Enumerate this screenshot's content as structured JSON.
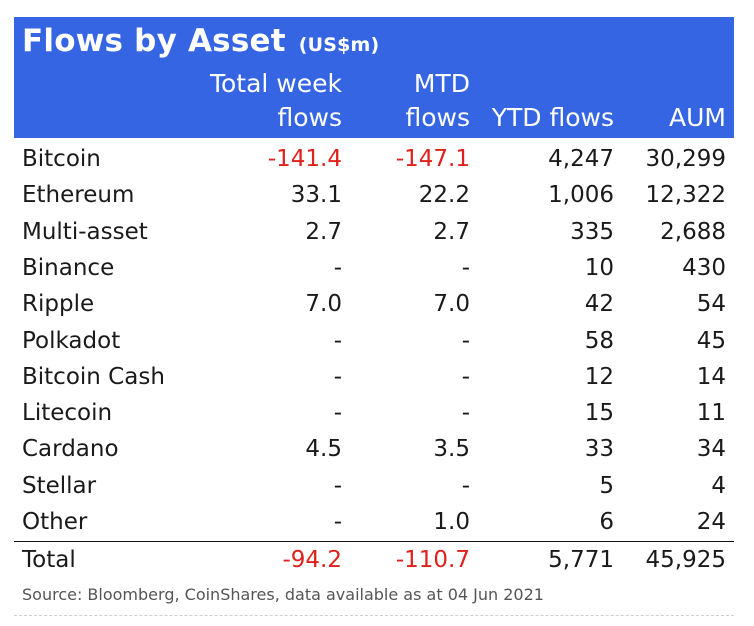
{
  "chart_data": {
    "type": "table",
    "title": "Flows by Asset",
    "title_unit": "(US$m)",
    "columns": [
      {
        "line1": "Total week",
        "line2": "flows"
      },
      {
        "line1": "MTD",
        "line2": "flows"
      },
      {
        "line1": "",
        "line2": "YTD flows"
      },
      {
        "line1": "",
        "line2": "AUM"
      }
    ],
    "rows": [
      {
        "name": "Bitcoin",
        "values": [
          "-141.4",
          "-147.1",
          "4,247",
          "30,299"
        ]
      },
      {
        "name": "Ethereum",
        "values": [
          "33.1",
          "22.2",
          "1,006",
          "12,322"
        ]
      },
      {
        "name": "Multi-asset",
        "values": [
          "2.7",
          "2.7",
          "335",
          "2,688"
        ]
      },
      {
        "name": "Binance",
        "values": [
          "-",
          "-",
          "10",
          "430"
        ]
      },
      {
        "name": "Ripple",
        "values": [
          "7.0",
          "7.0",
          "42",
          "54"
        ]
      },
      {
        "name": "Polkadot",
        "values": [
          "-",
          "-",
          "58",
          "45"
        ]
      },
      {
        "name": "Bitcoin Cash",
        "values": [
          "-",
          "-",
          "12",
          "14"
        ]
      },
      {
        "name": "Litecoin",
        "values": [
          "-",
          "-",
          "15",
          "11"
        ]
      },
      {
        "name": "Cardano",
        "values": [
          "4.5",
          "3.5",
          "33",
          "34"
        ]
      },
      {
        "name": "Stellar",
        "values": [
          "-",
          "-",
          "5",
          "4"
        ]
      },
      {
        "name": "Other",
        "values": [
          "-",
          "1.0",
          "6",
          "24"
        ]
      }
    ],
    "total": {
      "name": "Total",
      "values": [
        "-94.2",
        "-110.7",
        "5,771",
        "45,925"
      ]
    },
    "source": "Source: Bloomberg, CoinShares, data available as at 04 Jun 2021",
    "colors": {
      "header_bg": "#3565e3",
      "header_text": "#ffffff",
      "negative": "#e0201b",
      "text": "#1a1a1a"
    }
  }
}
